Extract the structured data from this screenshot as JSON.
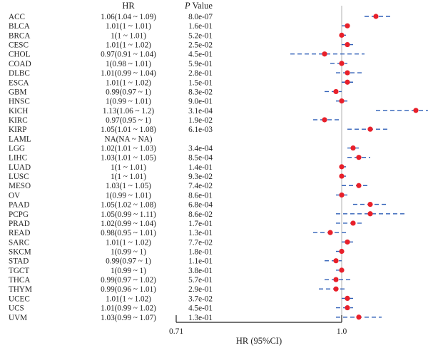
{
  "chart_data": {
    "type": "forest",
    "columns": {
      "hr": "HR",
      "p_prefix": "P",
      "p_suffix": " Value"
    },
    "xlabel": "HR (95%CI)",
    "x_ticks": [
      {
        "value": 0.71,
        "label": "0.71"
      },
      {
        "value": 1.0,
        "label": "1.0"
      }
    ],
    "xlim": [
      0.71,
      1.22
    ],
    "reference_line": 1.0,
    "colors": {
      "point": "#e8202a",
      "ci": "#3060b8",
      "axis": "#222222",
      "ref_line": "#b0b0b0"
    },
    "rows": [
      {
        "label": "ACC",
        "hr": 1.06,
        "lo": 1.04,
        "hi": 1.09,
        "hr_text": "1.06(1.04 ~ 1.09)",
        "p": "8.0e-07"
      },
      {
        "label": "BLCA",
        "hr": 1.01,
        "lo": 1.0,
        "hi": 1.01,
        "hr_text": "1.01(1 ~ 1.01)",
        "p": "1.6e-01"
      },
      {
        "label": "BRCA",
        "hr": 1.0,
        "lo": 1.0,
        "hi": 1.01,
        "hr_text": "1(1 ~ 1.01)",
        "p": "5.2e-01"
      },
      {
        "label": "CESC",
        "hr": 1.01,
        "lo": 1.0,
        "hi": 1.02,
        "hr_text": "1.01(1 ~ 1.02)",
        "p": "2.5e-02"
      },
      {
        "label": "CHOL",
        "hr": 0.97,
        "lo": 0.91,
        "hi": 1.04,
        "hr_text": "0.97(0.91 ~ 1.04)",
        "p": "4.5e-01"
      },
      {
        "label": "COAD",
        "hr": 1.0,
        "lo": 0.98,
        "hi": 1.01,
        "hr_text": "1(0.98 ~ 1.01)",
        "p": "5.9e-01"
      },
      {
        "label": "DLBC",
        "hr": 1.01,
        "lo": 0.99,
        "hi": 1.04,
        "hr_text": "1.01(0.99 ~ 1.04)",
        "p": "2.8e-01"
      },
      {
        "label": "ESCA",
        "hr": 1.01,
        "lo": 1.0,
        "hi": 1.02,
        "hr_text": "1.01(1 ~ 1.02)",
        "p": "1.5e-01"
      },
      {
        "label": "GBM",
        "hr": 0.99,
        "lo": 0.97,
        "hi": 1.0,
        "hr_text": "0.99(0.97 ~ 1)",
        "p": "8.3e-02"
      },
      {
        "label": "HNSC",
        "hr": 1.0,
        "lo": 0.99,
        "hi": 1.01,
        "hr_text": "1(0.99 ~ 1.01)",
        "p": "9.0e-01"
      },
      {
        "label": "KICH",
        "hr": 1.13,
        "lo": 1.06,
        "hi": 1.2,
        "hr_text": "1.13(1.06 ~ 1.2)",
        "p": "3.1e-04"
      },
      {
        "label": "KIRC",
        "hr": 0.97,
        "lo": 0.95,
        "hi": 1.0,
        "hr_text": "0.97(0.95 ~ 1)",
        "p": "1.9e-02"
      },
      {
        "label": "KIRP",
        "hr": 1.05,
        "lo": 1.01,
        "hi": 1.08,
        "hr_text": "1.05(1.01 ~ 1.08)",
        "p": "6.1e-03"
      },
      {
        "label": "LAML",
        "hr": null,
        "lo": null,
        "hi": null,
        "hr_text": "NA(NA ~ NA)",
        "p": ""
      },
      {
        "label": "LGG",
        "hr": 1.02,
        "lo": 1.01,
        "hi": 1.03,
        "hr_text": "1.02(1.01 ~ 1.03)",
        "p": "3.4e-04"
      },
      {
        "label": "LIHC",
        "hr": 1.03,
        "lo": 1.01,
        "hi": 1.05,
        "hr_text": "1.03(1.01 ~ 1.05)",
        "p": "8.5e-04"
      },
      {
        "label": "LUAD",
        "hr": 1.0,
        "lo": 1.0,
        "hi": 1.01,
        "hr_text": "1(1 ~ 1.01)",
        "p": "1.4e-01"
      },
      {
        "label": "LUSC",
        "hr": 1.0,
        "lo": 1.0,
        "hi": 1.01,
        "hr_text": "1(1 ~ 1.01)",
        "p": "9.3e-02"
      },
      {
        "label": "MESO",
        "hr": 1.03,
        "lo": 1.0,
        "hi": 1.05,
        "hr_text": "1.03(1 ~ 1.05)",
        "p": "7.4e-02"
      },
      {
        "label": "OV",
        "hr": 1.0,
        "lo": 0.99,
        "hi": 1.01,
        "hr_text": "1(0.99 ~ 1.01)",
        "p": "8.6e-01"
      },
      {
        "label": "PAAD",
        "hr": 1.05,
        "lo": 1.02,
        "hi": 1.08,
        "hr_text": "1.05(1.02 ~ 1.08)",
        "p": "6.8e-04"
      },
      {
        "label": "PCPG",
        "hr": 1.05,
        "lo": 0.99,
        "hi": 1.11,
        "hr_text": "1.05(0.99 ~ 1.11)",
        "p": "8.6e-02"
      },
      {
        "label": "PRAD",
        "hr": 1.02,
        "lo": 0.99,
        "hi": 1.04,
        "hr_text": "1.02(0.99 ~ 1.04)",
        "p": "1.7e-01"
      },
      {
        "label": "READ",
        "hr": 0.98,
        "lo": 0.95,
        "hi": 1.01,
        "hr_text": "0.98(0.95 ~ 1.01)",
        "p": "1.3e-01"
      },
      {
        "label": "SARC",
        "hr": 1.01,
        "lo": 1.0,
        "hi": 1.02,
        "hr_text": "1.01(1 ~ 1.02)",
        "p": "7.7e-02"
      },
      {
        "label": "SKCM",
        "hr": 1.0,
        "lo": 0.99,
        "hi": 1.0,
        "hr_text": "1(0.99 ~ 1)",
        "p": "1.8e-01"
      },
      {
        "label": "STAD",
        "hr": 0.99,
        "lo": 0.97,
        "hi": 1.0,
        "hr_text": "0.99(0.97 ~ 1)",
        "p": "1.1e-01"
      },
      {
        "label": "TGCT",
        "hr": 1.0,
        "lo": 0.99,
        "hi": 1.0,
        "hr_text": "1(0.99 ~ 1)",
        "p": "3.8e-01"
      },
      {
        "label": "THCA",
        "hr": 0.99,
        "lo": 0.97,
        "hi": 1.02,
        "hr_text": "0.99(0.97 ~ 1.02)",
        "p": "5.7e-01"
      },
      {
        "label": "THYM",
        "hr": 0.99,
        "lo": 0.96,
        "hi": 1.01,
        "hr_text": "0.99(0.96 ~ 1.01)",
        "p": "2.9e-01"
      },
      {
        "label": "UCEC",
        "hr": 1.01,
        "lo": 1.0,
        "hi": 1.02,
        "hr_text": "1.01(1 ~ 1.02)",
        "p": "3.7e-02"
      },
      {
        "label": "UCS",
        "hr": 1.01,
        "lo": 0.99,
        "hi": 1.02,
        "hr_text": "1.01(0.99 ~ 1.02)",
        "p": "4.5e-01"
      },
      {
        "label": "UVM",
        "hr": 1.03,
        "lo": 0.99,
        "hi": 1.07,
        "hr_text": "1.03(0.99 ~ 1.07)",
        "p": "1.3e-01"
      }
    ]
  }
}
